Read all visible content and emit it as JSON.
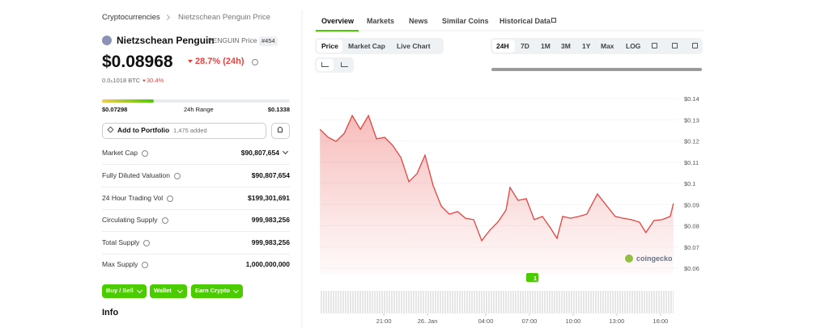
{
  "breadcrumb": [
    "Cryptocurrencies",
    "Nietzschean Penguin Price"
  ],
  "coin": {
    "name": "Nietzschean Penguin",
    "symbol": "PENGUIN Price",
    "rank": "#454",
    "price": "$0.08968",
    "change_24h": "28.7% (24h)",
    "btc_price": "0.0₅1018 BTC",
    "btc_change": "30.4%"
  },
  "range": {
    "low": "$0.07298",
    "label": "24h Range",
    "high": "$0.1338"
  },
  "portfolio": {
    "button": "Add to Portfolio",
    "added": "1,475 added"
  },
  "stats": [
    {
      "label": "Market Cap",
      "value": "$90,807,654"
    },
    {
      "label": "Fully Diluted Valuation",
      "value": "$90,807,654"
    },
    {
      "label": "24 Hour Trading Vol",
      "value": "$199,301,691"
    },
    {
      "label": "Circulating Supply",
      "value": "999,983,256"
    },
    {
      "label": "Total Supply",
      "value": "999,983,256"
    },
    {
      "label": "Max Supply",
      "value": "1,000,000,000"
    }
  ],
  "actions": [
    "Buy / Sell",
    "Wallet",
    "Earn Crypto"
  ],
  "info_heading": "Info",
  "tabs": [
    "Overview",
    "Markets",
    "News",
    "Similar Coins",
    "Historical Data"
  ],
  "chart_modes": [
    "Price",
    "Market Cap",
    "Live Chart"
  ],
  "ranges": [
    "24H",
    "7D",
    "1M",
    "3M",
    "1Y",
    "Max",
    "LOG"
  ],
  "watermark": "coingecko",
  "badge": "1",
  "chart": {
    "type": "line",
    "color": "#e5433f",
    "grid": true,
    "x": [
      -7.39,
      -6.83,
      -6.28,
      -5.72,
      -5.17,
      -4.61,
      -4.06,
      -3.5,
      -2.94,
      -2.39,
      -1.83,
      -1.28,
      -0.72,
      -0.17,
      0.39,
      0.94,
      1.5,
      2.06,
      2.61,
      3.17,
      3.72,
      4.28,
      4.83,
      5.39,
      5.67,
      6.22,
      6.78,
      7.33,
      7.89,
      8.44,
      8.89,
      9.28,
      9.83,
      10.39,
      10.94,
      11.67,
      12.33,
      12.89,
      13.44,
      14.0,
      14.56,
      15.0,
      15.56,
      16.11,
      16.67,
      16.89
    ],
    "values": [
      0.1255,
      0.1217,
      0.1198,
      0.1236,
      0.132,
      0.1255,
      0.132,
      0.121,
      0.1217,
      0.1179,
      0.1122,
      0.1008,
      0.1046,
      0.1133,
      0.0989,
      0.0893,
      0.0855,
      0.0867,
      0.0836,
      0.0829,
      0.073,
      0.0779,
      0.0817,
      0.0874,
      0.0981,
      0.092,
      0.0928,
      0.0829,
      0.0844,
      0.079,
      0.0741,
      0.0844,
      0.0836,
      0.0844,
      0.0855,
      0.095,
      0.0893,
      0.0844,
      0.0836,
      0.0829,
      0.0817,
      0.0768,
      0.0825,
      0.0829,
      0.0844,
      0.0905
    ],
    "xlim": [
      -7.4,
      16.9
    ],
    "xticks": [
      {
        "value": -3,
        "label": "21:00"
      },
      {
        "value": 0,
        "label": "26. Jan"
      },
      {
        "value": 4,
        "label": "04:00"
      },
      {
        "value": 7,
        "label": "07:00"
      },
      {
        "value": 10,
        "label": "10:00"
      },
      {
        "value": 13,
        "label": "13:00"
      },
      {
        "value": 16,
        "label": "16:00"
      }
    ],
    "ylim": [
      0.06,
      0.14
    ],
    "yticks": [
      {
        "value": 0.06,
        "label": "$0.06"
      },
      {
        "value": 0.07,
        "label": "$0.07"
      },
      {
        "value": 0.08,
        "label": "$0.08"
      },
      {
        "value": 0.09,
        "label": "$0.09"
      },
      {
        "value": 0.1,
        "label": "$0.1"
      },
      {
        "value": 0.11,
        "label": "$0.11"
      },
      {
        "value": 0.12,
        "label": "$0.12"
      },
      {
        "value": 0.13,
        "label": "$0.13"
      },
      {
        "value": 0.14,
        "label": "$0.14"
      }
    ]
  }
}
